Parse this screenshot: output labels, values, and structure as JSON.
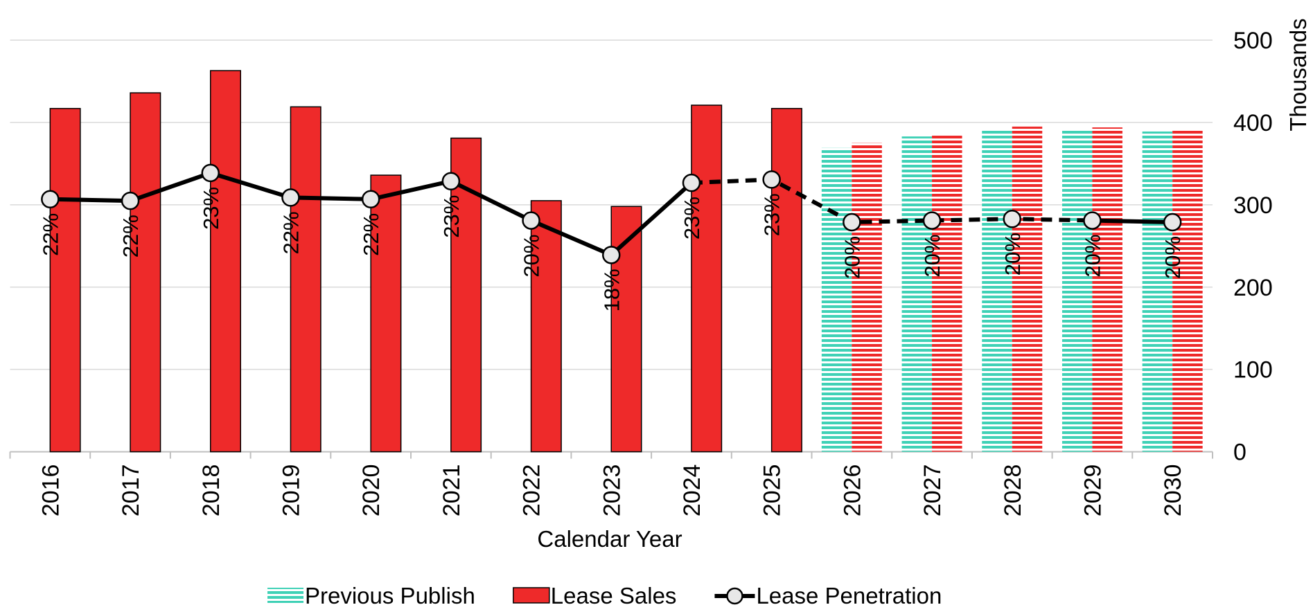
{
  "chart_data": {
    "type": "bar",
    "x_label": "Calendar Year",
    "y_label": "Thousands",
    "categories": [
      "2016",
      "2017",
      "2018",
      "2019",
      "2020",
      "2021",
      "2022",
      "2023",
      "2024",
      "2025",
      "2026",
      "2027",
      "2028",
      "2029",
      "2030"
    ],
    "series": [
      {
        "name": "Previous Publish",
        "color": "#3fd1b6",
        "hatch": [
          false,
          false,
          false,
          false,
          false,
          false,
          false,
          false,
          false,
          false,
          true,
          true,
          true,
          true,
          true
        ],
        "values": [
          null,
          null,
          null,
          null,
          null,
          null,
          null,
          null,
          null,
          null,
          369,
          383,
          390,
          392,
          389
        ]
      },
      {
        "name": "Lease Sales",
        "color": "#ee2a2a",
        "hatch": [
          false,
          false,
          false,
          false,
          false,
          false,
          false,
          false,
          false,
          false,
          true,
          true,
          true,
          true,
          true
        ],
        "values": [
          417,
          436,
          463,
          419,
          336,
          381,
          305,
          298,
          421,
          417,
          375,
          386,
          395,
          394,
          390
        ]
      },
      {
        "name": "Lease Penetration",
        "type": "line",
        "axis": "y2",
        "color": "#000000",
        "dashed_range": [
          8,
          13
        ],
        "values": [
          21.6,
          21.5,
          23.2,
          21.7,
          21.6,
          22.7,
          20.3,
          18.2,
          22.6,
          22.8,
          20.2,
          20.3,
          20.4,
          20.3,
          20.2
        ],
        "value_labels": [
          "22%",
          "22%",
          "23%",
          "22%",
          "22%",
          "23%",
          "20%",
          "18%",
          "23%",
          "23%",
          "20%",
          "20%",
          "20%",
          "20%",
          "20%"
        ]
      }
    ],
    "ylim": [
      0,
      500
    ],
    "yticks": [
      0,
      100,
      200,
      300,
      400,
      500
    ],
    "y2lim": [
      6.2,
      31.3
    ],
    "grid": true,
    "legend": "bottom"
  }
}
